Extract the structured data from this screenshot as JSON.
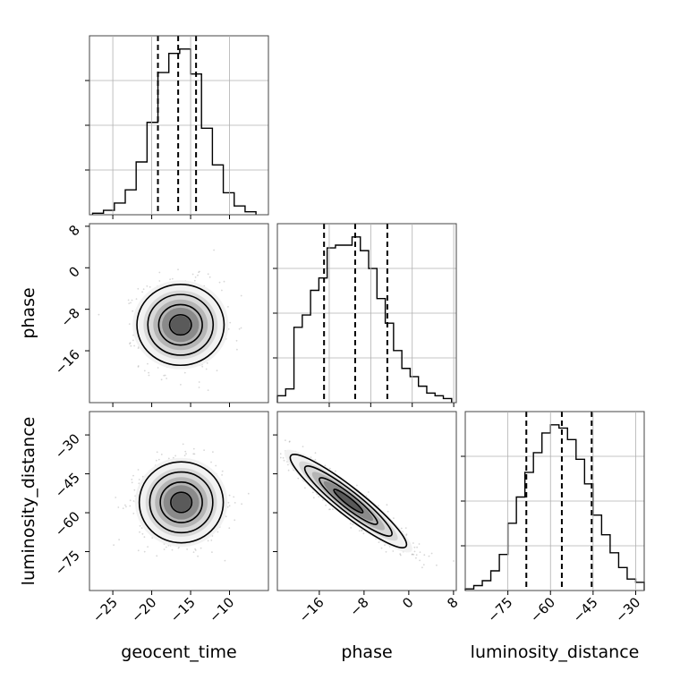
{
  "chart_data": [
    {
      "type": "histogram",
      "panel": "geocent_time",
      "bin_edges": [
        -27.6,
        -26.2,
        -24.8,
        -23.4,
        -22.0,
        -20.6,
        -19.2,
        -17.8,
        -16.4,
        -15.0,
        -13.6,
        -12.2,
        -10.8,
        -9.4,
        -8.0,
        -6.6
      ],
      "counts": [
        1,
        3,
        8,
        17,
        36,
        63,
        97,
        110,
        113,
        96,
        59,
        34,
        15,
        6,
        2
      ],
      "quantiles": [
        -19.2,
        -16.6,
        -14.3
      ],
      "xlim": [
        -28,
        -5
      ],
      "grid": true
    },
    {
      "type": "histogram",
      "panel": "phase",
      "bin_edges": [
        -26,
        -24.4,
        -22.8,
        -21.2,
        -19.6,
        -18.0,
        -16.4,
        -14.8,
        -13.2,
        -11.6,
        -10.0,
        -8.4,
        -6.8,
        -5.2,
        -3.6,
        -2.0,
        -0.4,
        1.2,
        2.8,
        4.4,
        6.0,
        7.6
      ],
      "counts": [
        5,
        10,
        55,
        64,
        82,
        91,
        113,
        115,
        115,
        121,
        111,
        98,
        76,
        58,
        38,
        25,
        19,
        12,
        7,
        5,
        3
      ],
      "quantiles": [
        -17.0,
        -11.0,
        -4.8
      ],
      "xlim": [
        -26,
        8.5
      ],
      "grid": true
    },
    {
      "type": "histogram",
      "panel": "luminosity_distance",
      "bin_edges": [
        -90,
        -87,
        -84,
        -81,
        -78,
        -75,
        -72,
        -69,
        -66,
        -63,
        -60,
        -57,
        -54,
        -51,
        -48,
        -45,
        -42,
        -39,
        -36,
        -33,
        -30,
        -27
      ],
      "counts": [
        1,
        3,
        6,
        12,
        22,
        41,
        57,
        72,
        84,
        96,
        101,
        99,
        92,
        80,
        65,
        46,
        34,
        23,
        14,
        7,
        5
      ],
      "quantiles": [
        -68.5,
        -56.0,
        -45.5
      ],
      "xlim": [
        -90,
        -27
      ],
      "grid": true
    },
    {
      "type": "contour2d",
      "x": "geocent_time",
      "y": "phase",
      "center": [
        -16.3,
        -11.0
      ],
      "spread": [
        2.6,
        4.2
      ],
      "correlation": 0.0,
      "xlim": [
        -28,
        -5
      ],
      "ylim": [
        -26,
        8.5
      ],
      "levels": [
        0.5,
        1.0,
        1.5,
        2.0
      ]
    },
    {
      "type": "contour2d",
      "x": "geocent_time",
      "y": "luminosity_distance",
      "center": [
        -16.2,
        -56.0
      ],
      "spread": [
        2.7,
        7.8
      ],
      "correlation": 0.0,
      "xlim": [
        -28,
        -5
      ],
      "ylim": [
        -90,
        -21
      ],
      "levels": [
        0.5,
        1.0,
        1.5,
        2.0
      ]
    },
    {
      "type": "contour2d",
      "x": "phase",
      "y": "luminosity_distance",
      "center": [
        -10.8,
        -55.5
      ],
      "spread": [
        5.2,
        9.0
      ],
      "correlation": -0.93,
      "xlim": [
        -23.5,
        8.5
      ],
      "ylim": [
        -90,
        -21
      ],
      "levels": [
        0.5,
        1.0,
        1.5,
        2.0
      ]
    }
  ],
  "axes": {
    "geocent_time": {
      "label": "geocent_time",
      "ticks": [
        -25,
        -20,
        -15,
        -10
      ],
      "tick_labels": [
        "−25",
        "−20",
        "−15",
        "−10"
      ]
    },
    "phase_x": {
      "label": "phase",
      "ticks": [
        -16,
        -8,
        0,
        8
      ],
      "tick_labels": [
        "−16",
        "−8",
        "0",
        "8"
      ]
    },
    "phase_y": {
      "label": "phase",
      "ticks": [
        8,
        0,
        -8,
        -16
      ],
      "tick_labels": [
        "8",
        "0",
        "−8",
        "−16"
      ]
    },
    "luminosity_distance_x": {
      "label": "luminosity_distance",
      "ticks": [
        -75,
        -60,
        -45,
        -30
      ],
      "tick_labels": [
        "−75",
        "−60",
        "−45",
        "−30"
      ]
    },
    "luminosity_distance_y": {
      "label": "luminosity_distance",
      "ticks": [
        -30,
        -45,
        -60,
        -75
      ],
      "tick_labels": [
        "−30",
        "−45",
        "−60",
        "−75"
      ]
    }
  },
  "colors": {
    "line": "#000000",
    "grid": "#b0b0b0",
    "scatter": "#8c8c8c"
  }
}
